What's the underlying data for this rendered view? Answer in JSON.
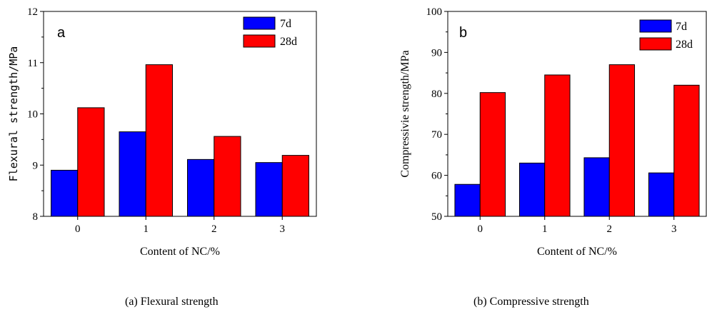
{
  "chart_data": [
    {
      "type": "bar",
      "panel_label": "a",
      "categories": [
        "0",
        "1",
        "2",
        "3"
      ],
      "series": [
        {
          "name": "7d",
          "values": [
            8.9,
            9.65,
            9.11,
            9.05
          ],
          "color": "#0000ff"
        },
        {
          "name": "28d",
          "values": [
            10.12,
            10.96,
            9.56,
            9.19
          ],
          "color": "#ff0000"
        }
      ],
      "xlabel": "Content of NC/%",
      "ylabel": "Flexural strength/MPa",
      "ylim": [
        8,
        12
      ],
      "yticks": [
        "8",
        "9",
        "10",
        "11",
        "12"
      ],
      "legend_position": "top-right",
      "grid": false
    },
    {
      "type": "bar",
      "panel_label": "b",
      "categories": [
        "0",
        "1",
        "2",
        "3"
      ],
      "series": [
        {
          "name": "7d",
          "values": [
            57.8,
            63.0,
            64.3,
            60.6
          ],
          "color": "#0000ff"
        },
        {
          "name": "28d",
          "values": [
            80.2,
            84.5,
            87.0,
            82.0
          ],
          "color": "#ff0000"
        }
      ],
      "xlabel": "Content of NC/%",
      "ylabel": "Compressivie strength/MPa",
      "ylim": [
        50,
        100
      ],
      "yticks": [
        "50",
        "60",
        "70",
        "80",
        "90",
        "100"
      ],
      "legend_position": "top-right",
      "grid": false
    }
  ],
  "captions": {
    "left": "(a) Flexural strength",
    "right": "(b) Compressive strength"
  }
}
